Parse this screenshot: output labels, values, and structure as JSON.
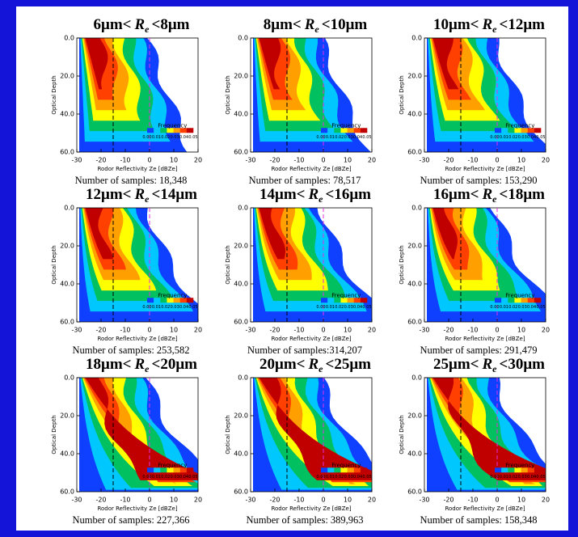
{
  "chart_data": [
    {
      "type": "contour",
      "title": {
        "prefix": "6μm<",
        "var": "R",
        "sub": "e",
        "suffix": "<8μm"
      },
      "note": "Number of samples: 18,348"
    },
    {
      "type": "contour",
      "title": {
        "prefix": "8μm<",
        "var": "R",
        "sub": "e",
        "suffix": "<10μm"
      },
      "note": "Number of samples: 78,517"
    },
    {
      "type": "contour",
      "title": {
        "prefix": "10μm<",
        "var": "R",
        "sub": "e",
        "suffix": "<12μm"
      },
      "note": "Number of samples: 153,290"
    },
    {
      "type": "contour",
      "title": {
        "prefix": "12μm<",
        "var": "R",
        "sub": "e",
        "suffix": "<14μm"
      },
      "note": "Number of samples: 253,582"
    },
    {
      "type": "contour",
      "title": {
        "prefix": "14μm<",
        "var": "R",
        "sub": "e",
        "suffix": "<16μm"
      },
      "note": "Number of samples:314,207"
    },
    {
      "type": "contour",
      "title": {
        "prefix": "16μm<",
        "var": "R",
        "sub": "e",
        "suffix": "<18μm"
      },
      "note": "Number of samples: 291,479"
    },
    {
      "type": "contour",
      "title": {
        "prefix": "18μm<",
        "var": "R",
        "sub": "e",
        "suffix": "<20μm"
      },
      "note": "Number of samples: 227,366"
    },
    {
      "type": "contour",
      "title": {
        "prefix": "20μm<",
        "var": "R",
        "sub": "e",
        "suffix": "<25μm"
      },
      "note": "Number of samples: 389,963"
    },
    {
      "type": "contour",
      "title": {
        "prefix": "25μm<",
        "var": "R",
        "sub": "e",
        "suffix": "<30μm"
      },
      "note": "Number of samples: 158,348"
    }
  ],
  "axes": {
    "xlabel": "Rodor Reflectivity Ze [dBZe]",
    "ylabel": "Optical Depth",
    "xlim": [
      -30,
      20
    ],
    "xticks": [
      -30,
      -20,
      -10,
      0,
      10,
      20
    ],
    "ylim": [
      0,
      60
    ],
    "yticks": [
      {
        "value": 0,
        "label": "0.0"
      },
      {
        "value": 20,
        "label": "20.0"
      },
      {
        "value": 40,
        "label": "40.0"
      },
      {
        "value": 60,
        "label": "60.0"
      }
    ],
    "reference_lines": [
      {
        "x": -15,
        "color": "#000000"
      },
      {
        "x": 0,
        "color": "#e030e0"
      }
    ]
  },
  "colorbar": {
    "label": "Frequency",
    "ticks": [
      {
        "value": 0,
        "label": "0.00"
      },
      {
        "value": 0.01,
        "label": "0.01"
      },
      {
        "value": 0.02,
        "label": "0.02"
      },
      {
        "value": 0.03,
        "label": "0.03"
      },
      {
        "value": 0.04,
        "label": "0.04"
      },
      {
        "value": 0.05,
        "label": "0.05"
      }
    ],
    "colors": [
      "#1040ff",
      "#00c8ff",
      "#00c060",
      "#ffff00",
      "#ffa000",
      "#ff4000",
      "#c00000"
    ]
  }
}
